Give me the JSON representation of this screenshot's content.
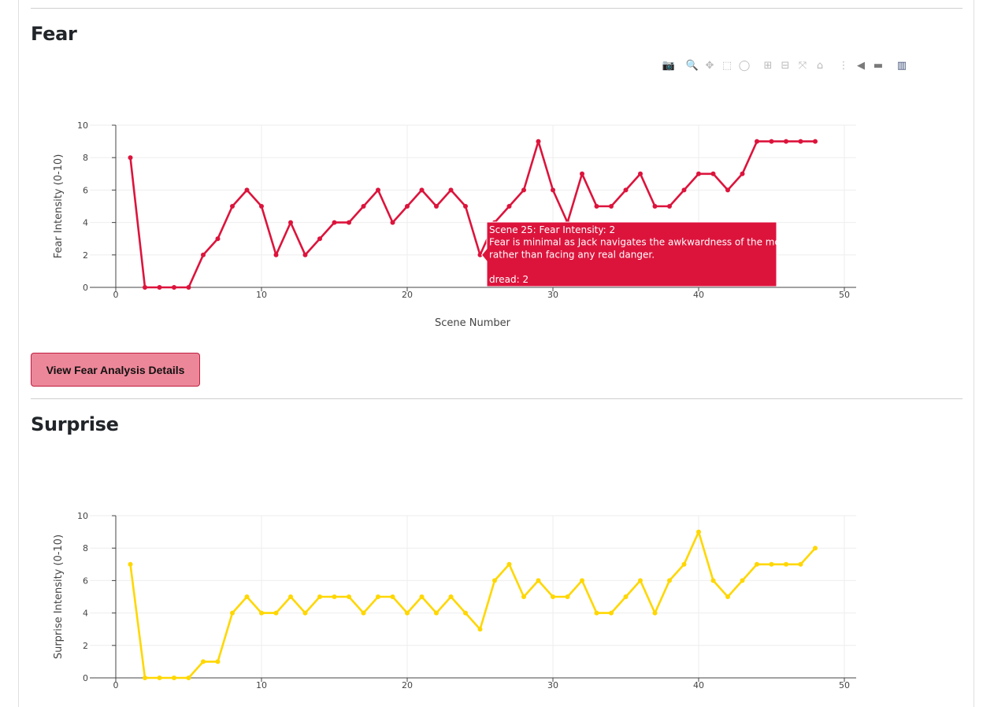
{
  "sections": [
    {
      "title": "Fear",
      "button_label": "View Fear Analysis Details"
    },
    {
      "title": "Surprise"
    }
  ],
  "modebar": {
    "icons": [
      "camera-icon",
      "zoom-icon",
      "pan-icon",
      "box-select-icon",
      "lasso-select-icon",
      "zoom-in-icon",
      "zoom-out-icon",
      "autoscale-icon",
      "reset-axes-icon",
      "spike-lines-icon",
      "hover-closest-icon",
      "hover-compare-icon",
      "plotly-logo-icon"
    ],
    "glyphs": [
      "📷",
      "🔍",
      "✥",
      "⬚",
      "◯",
      "⊞",
      "⊟",
      "⤧",
      "⌂",
      "⋮",
      "◀",
      "▬",
      "▥"
    ]
  },
  "colors": {
    "fear": "#dc143c",
    "surprise": "#ffd700",
    "button_bg": "#ec8799",
    "button_border": "#c21e3f"
  },
  "tooltip": {
    "lines": [
      "Scene 25: Fear Intensity: 2",
      "Fear is minimal as Jack navigates the awkwardness of the moment",
      "rather than facing any real danger.",
      "",
      "dread: 2"
    ],
    "scene": 25,
    "value": 2
  },
  "chart_data": [
    {
      "type": "line",
      "xlabel": "Scene Number",
      "ylabel": "Fear Intensity (0-10)",
      "xlim": [
        0,
        50
      ],
      "ylim": [
        0,
        10
      ],
      "xticks": [
        0,
        10,
        20,
        30,
        40,
        50
      ],
      "yticks": [
        0,
        2,
        4,
        6,
        8,
        10
      ],
      "grid": true,
      "x": [
        1,
        2,
        3,
        4,
        5,
        6,
        7,
        8,
        9,
        10,
        11,
        12,
        13,
        14,
        15,
        16,
        17,
        18,
        19,
        20,
        21,
        22,
        23,
        24,
        25,
        26,
        27,
        28,
        29,
        30,
        31,
        32,
        33,
        34,
        35,
        36,
        37,
        38,
        39,
        40,
        41,
        42,
        43,
        44,
        45,
        46,
        47,
        48
      ],
      "series": [
        {
          "values": [
            8,
            0,
            0,
            0,
            0,
            2,
            3,
            5,
            6,
            5,
            2,
            4,
            2,
            3,
            4,
            4,
            5,
            6,
            4,
            5,
            6,
            5,
            6,
            5,
            2,
            4,
            5,
            6,
            9,
            6,
            4,
            7,
            5,
            5,
            6,
            7,
            5,
            5,
            6,
            7,
            7,
            6,
            7,
            9,
            9,
            9,
            9,
            9
          ],
          "color": "#dc143c"
        }
      ]
    },
    {
      "type": "line",
      "xlabel": "",
      "ylabel": "Surprise Intensity (0-10)",
      "xlim": [
        0,
        50
      ],
      "ylim": [
        0,
        10
      ],
      "xticks": [
        0,
        10,
        20,
        30,
        40,
        50
      ],
      "yticks": [
        0,
        2,
        4,
        6,
        8,
        10
      ],
      "grid": true,
      "x": [
        1,
        2,
        3,
        4,
        5,
        6,
        7,
        8,
        9,
        10,
        11,
        12,
        13,
        14,
        15,
        16,
        17,
        18,
        19,
        20,
        21,
        22,
        23,
        24,
        25,
        26,
        27,
        28,
        29,
        30,
        31,
        32,
        33,
        34,
        35,
        36,
        37,
        38,
        39,
        40,
        41,
        42,
        43,
        44,
        45,
        46,
        47,
        48
      ],
      "series": [
        {
          "values": [
            7,
            0,
            0,
            0,
            0,
            1,
            1,
            4,
            5,
            4,
            4,
            5,
            4,
            5,
            5,
            5,
            4,
            5,
            5,
            4,
            5,
            4,
            5,
            4,
            3,
            6,
            7,
            5,
            6,
            5,
            5,
            6,
            4,
            4,
            5,
            6,
            4,
            6,
            7,
            9,
            6,
            5,
            6,
            7,
            7,
            7,
            7,
            8
          ],
          "color": "#ffd700"
        }
      ]
    }
  ]
}
